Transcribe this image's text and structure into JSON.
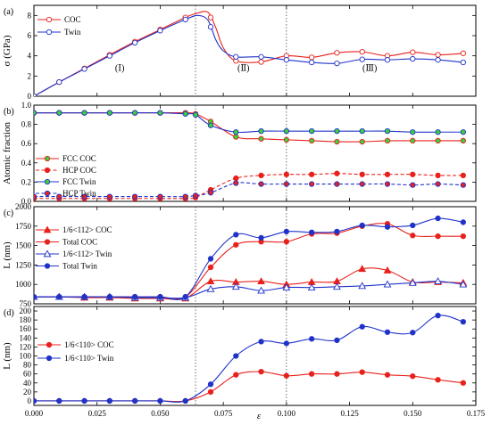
{
  "x_axis": {
    "label": "ε",
    "ticks": [
      "0.000",
      "0.025",
      "0.050",
      "0.075",
      "0.100",
      "0.125",
      "0.150",
      "0.175"
    ],
    "xlim": [
      0,
      0.175
    ]
  },
  "vlines": [
    0.064,
    0.1
  ],
  "colors": {
    "red": "#e8211c",
    "blue": "#1f33c9",
    "green": "#3ad13a"
  },
  "chart_data": [
    {
      "type": "line",
      "panel": "(a)",
      "ylabel": "σ (GPa)",
      "ylim": [
        0,
        9
      ],
      "yticks": [
        "0",
        "2",
        "4",
        "6",
        "8"
      ],
      "region_labels": [
        "(Ⅰ)",
        "(Ⅱ)",
        "(Ⅲ)"
      ],
      "legend": "top-left",
      "series": [
        {
          "name": "COC",
          "color": "red",
          "marker": "circle",
          "fill": "open",
          "style": "solid",
          "x": [
            0,
            0.01,
            0.02,
            0.03,
            0.04,
            0.05,
            0.06,
            0.065,
            0.069,
            0.072,
            0.075,
            0.08,
            0.09,
            0.1,
            0.11,
            0.12,
            0.13,
            0.14,
            0.15,
            0.16,
            0.17
          ],
          "y": [
            0,
            1.4,
            2.75,
            4.1,
            5.4,
            6.6,
            7.8,
            8.25,
            8.3,
            6.8,
            4.8,
            3.5,
            3.4,
            4.0,
            3.85,
            4.3,
            4.4,
            4.0,
            4.35,
            4.1,
            4.25
          ],
          "marker_x": [
            0,
            0.01,
            0.02,
            0.03,
            0.04,
            0.05,
            0.06,
            0.07,
            0.08,
            0.09,
            0.1,
            0.11,
            0.12,
            0.13,
            0.14,
            0.15,
            0.16,
            0.17
          ]
        },
        {
          "name": "Twin",
          "color": "blue",
          "marker": "circle",
          "fill": "open",
          "style": "solid",
          "x": [
            0,
            0.01,
            0.02,
            0.03,
            0.04,
            0.05,
            0.06,
            0.065,
            0.069,
            0.072,
            0.075,
            0.08,
            0.09,
            0.1,
            0.11,
            0.12,
            0.13,
            0.14,
            0.15,
            0.16,
            0.17
          ],
          "y": [
            0,
            1.4,
            2.7,
            4.0,
            5.3,
            6.5,
            7.6,
            8.0,
            7.5,
            5.6,
            4.5,
            3.9,
            3.9,
            3.6,
            3.35,
            3.25,
            3.65,
            3.6,
            3.7,
            3.6,
            3.35
          ],
          "marker_x": [
            0,
            0.01,
            0.02,
            0.03,
            0.04,
            0.05,
            0.06,
            0.07,
            0.08,
            0.09,
            0.1,
            0.11,
            0.12,
            0.13,
            0.14,
            0.15,
            0.16,
            0.17
          ]
        }
      ]
    },
    {
      "type": "line",
      "panel": "(b)",
      "ylabel": "Atomic fraction",
      "ylim": [
        0,
        1
      ],
      "yticks": [
        "0.0",
        "0.2",
        "0.4",
        "0.6",
        "0.8",
        "1.0"
      ],
      "legend": "center-left",
      "series": [
        {
          "name": "FCC  COC",
          "color": "red",
          "marker": "circle",
          "fill": "green",
          "style": "solid",
          "x": [
            0,
            0.01,
            0.02,
            0.03,
            0.04,
            0.05,
            0.06,
            0.064,
            0.07,
            0.08,
            0.09,
            0.1,
            0.11,
            0.12,
            0.13,
            0.14,
            0.15,
            0.16,
            0.17
          ],
          "y": [
            0.92,
            0.92,
            0.92,
            0.92,
            0.92,
            0.92,
            0.92,
            0.91,
            0.83,
            0.67,
            0.65,
            0.64,
            0.63,
            0.62,
            0.62,
            0.63,
            0.63,
            0.63,
            0.63
          ]
        },
        {
          "name": "HCP COC",
          "color": "red",
          "marker": "circle",
          "fill": "red",
          "style": "dashed",
          "x": [
            0,
            0.01,
            0.02,
            0.03,
            0.04,
            0.05,
            0.06,
            0.064,
            0.07,
            0.08,
            0.09,
            0.1,
            0.11,
            0.12,
            0.13,
            0.14,
            0.15,
            0.16,
            0.17
          ],
          "y": [
            0.03,
            0.03,
            0.03,
            0.03,
            0.03,
            0.03,
            0.03,
            0.04,
            0.12,
            0.24,
            0.27,
            0.28,
            0.28,
            0.29,
            0.28,
            0.28,
            0.28,
            0.27,
            0.27
          ]
        },
        {
          "name": "FCC Twin",
          "color": "blue",
          "marker": "circle",
          "fill": "green",
          "style": "solid",
          "x": [
            0,
            0.01,
            0.02,
            0.03,
            0.04,
            0.05,
            0.06,
            0.064,
            0.07,
            0.08,
            0.09,
            0.1,
            0.11,
            0.12,
            0.13,
            0.14,
            0.15,
            0.16,
            0.17
          ],
          "y": [
            0.92,
            0.92,
            0.92,
            0.92,
            0.92,
            0.92,
            0.91,
            0.9,
            0.79,
            0.72,
            0.73,
            0.73,
            0.73,
            0.73,
            0.73,
            0.73,
            0.72,
            0.72,
            0.72
          ]
        },
        {
          "name": "HCP Twin",
          "color": "blue",
          "marker": "circle",
          "fill": "red",
          "style": "dashed",
          "x": [
            0,
            0.01,
            0.02,
            0.03,
            0.04,
            0.05,
            0.06,
            0.064,
            0.07,
            0.08,
            0.09,
            0.1,
            0.11,
            0.12,
            0.13,
            0.14,
            0.15,
            0.16,
            0.17
          ],
          "y": [
            0.05,
            0.05,
            0.05,
            0.05,
            0.05,
            0.05,
            0.05,
            0.06,
            0.09,
            0.19,
            0.18,
            0.18,
            0.18,
            0.18,
            0.18,
            0.18,
            0.17,
            0.18,
            0.17
          ]
        }
      ]
    },
    {
      "type": "line",
      "panel": "(c)",
      "ylabel": "L (nm)",
      "ylim": [
        750,
        2000
      ],
      "yticks": [
        "750",
        "1000",
        "1250",
        "1500",
        "1750",
        "2000"
      ],
      "legend": "center-left",
      "series": [
        {
          "name": "1/6<112> COC",
          "color": "red",
          "marker": "triangle",
          "fill": "filled",
          "style": "solid",
          "x": [
            0,
            0.01,
            0.02,
            0.03,
            0.04,
            0.05,
            0.06,
            0.07,
            0.08,
            0.09,
            0.1,
            0.11,
            0.12,
            0.13,
            0.14,
            0.15,
            0.16,
            0.17
          ],
          "y": [
            840,
            840,
            830,
            830,
            820,
            820,
            820,
            1040,
            1030,
            1040,
            1000,
            1030,
            1040,
            1200,
            1180,
            1030,
            1030,
            1020
          ]
        },
        {
          "name": "Total COC",
          "color": "red",
          "marker": "circle",
          "fill": "filled",
          "style": "solid",
          "x": [
            0,
            0.01,
            0.02,
            0.03,
            0.04,
            0.05,
            0.06,
            0.07,
            0.08,
            0.09,
            0.1,
            0.11,
            0.12,
            0.13,
            0.14,
            0.15,
            0.16,
            0.17
          ],
          "y": [
            840,
            840,
            840,
            840,
            840,
            840,
            840,
            1220,
            1510,
            1550,
            1550,
            1650,
            1660,
            1750,
            1780,
            1630,
            1620,
            1620
          ]
        },
        {
          "name": "1/6<112> Twin",
          "color": "blue",
          "marker": "triangle",
          "fill": "open",
          "style": "solid",
          "x": [
            0,
            0.01,
            0.02,
            0.03,
            0.04,
            0.05,
            0.06,
            0.07,
            0.08,
            0.09,
            0.1,
            0.11,
            0.12,
            0.13,
            0.14,
            0.15,
            0.16,
            0.17
          ],
          "y": [
            840,
            840,
            840,
            840,
            830,
            830,
            830,
            940,
            970,
            920,
            960,
            960,
            970,
            980,
            1000,
            1020,
            1040,
            1000
          ]
        },
        {
          "name": "Total Twin",
          "color": "blue",
          "marker": "circle",
          "fill": "filled",
          "style": "solid",
          "x": [
            0,
            0.01,
            0.02,
            0.03,
            0.04,
            0.05,
            0.06,
            0.07,
            0.08,
            0.09,
            0.1,
            0.11,
            0.12,
            0.13,
            0.14,
            0.15,
            0.16,
            0.17
          ],
          "y": [
            840,
            840,
            840,
            840,
            840,
            840,
            840,
            1330,
            1640,
            1600,
            1680,
            1670,
            1680,
            1760,
            1740,
            1760,
            1850,
            1800
          ]
        }
      ]
    },
    {
      "type": "line",
      "panel": "(d)",
      "ylabel": "L (nm)",
      "ylim": [
        -10,
        210
      ],
      "yticks": [
        "0",
        "20",
        "40",
        "60",
        "80",
        "100",
        "120",
        "140",
        "160",
        "180",
        "200"
      ],
      "legend": "center-left",
      "series": [
        {
          "name": "1/6<110> COC",
          "color": "red",
          "marker": "circle",
          "fill": "filled",
          "style": "solid",
          "x": [
            0,
            0.01,
            0.02,
            0.03,
            0.04,
            0.05,
            0.06,
            0.07,
            0.08,
            0.09,
            0.1,
            0.11,
            0.12,
            0.13,
            0.14,
            0.15,
            0.16,
            0.17
          ],
          "y": [
            0,
            0,
            0,
            0,
            0,
            0,
            0,
            20,
            58,
            65,
            56,
            60,
            60,
            64,
            58,
            55,
            47,
            40
          ]
        },
        {
          "name": "1/6<110> Twin",
          "color": "blue",
          "marker": "circle",
          "fill": "filled",
          "style": "solid",
          "x": [
            0,
            0.01,
            0.02,
            0.03,
            0.04,
            0.05,
            0.06,
            0.07,
            0.08,
            0.09,
            0.1,
            0.11,
            0.12,
            0.13,
            0.14,
            0.15,
            0.16,
            0.17
          ],
          "y": [
            0,
            0,
            0,
            0,
            0,
            0,
            0,
            37,
            100,
            132,
            128,
            138,
            135,
            165,
            153,
            152,
            190,
            176
          ]
        }
      ]
    }
  ]
}
